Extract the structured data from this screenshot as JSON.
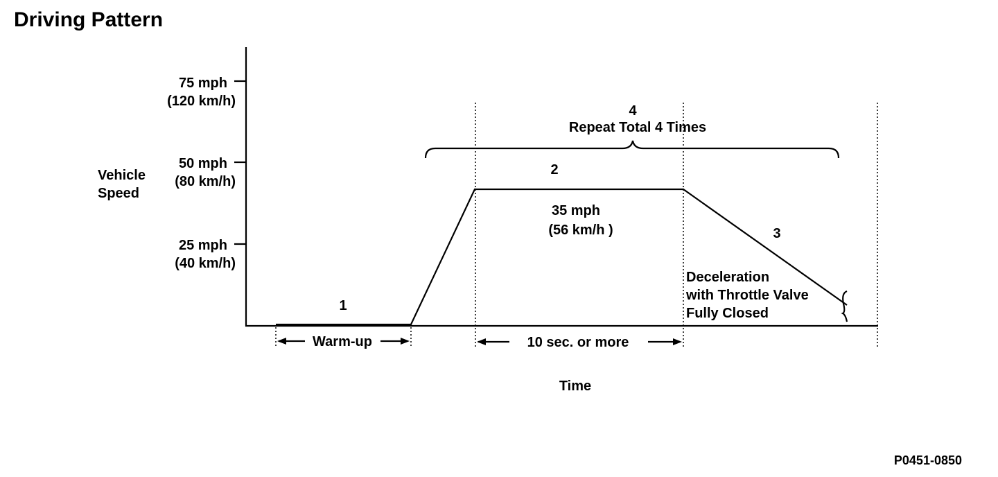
{
  "title": "Driving Pattern",
  "y_axis": {
    "label_line1": "Vehicle",
    "label_line2": "Speed",
    "ticks": [
      {
        "mph": "75 mph",
        "kmh": "(120 km/h)"
      },
      {
        "mph": "50 mph",
        "kmh": "(80 km/h)"
      },
      {
        "mph": "25 mph",
        "kmh": "(40 km/h)"
      }
    ]
  },
  "x_axis": {
    "label": "Time"
  },
  "steps": {
    "step1": "1",
    "step2": "2",
    "step3": "3",
    "step4": "4",
    "repeat": "Repeat Total 4 Times"
  },
  "cruise": {
    "mph": "35 mph",
    "kmh": "(56 km/h )"
  },
  "deceleration": {
    "line1": "Deceleration",
    "line2": "with Throttle Valve",
    "line3": "Fully Closed"
  },
  "intervals": {
    "warmup": "Warm-up",
    "duration": "10 sec. or more"
  },
  "figure_code": "P0451-0850",
  "colors": {
    "ink": "#000000",
    "background": "#ffffff"
  }
}
